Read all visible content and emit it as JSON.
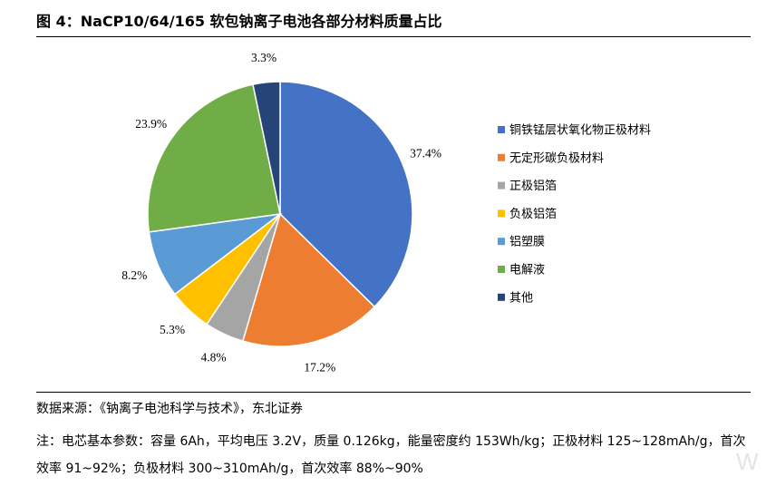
{
  "title": "图 4：NaCP10/64/165 软包钠离子电池各部分材料质量占比",
  "chart_data": {
    "type": "pie",
    "start_angle_deg": 0,
    "direction": "clockwise",
    "legend_position": "right",
    "slices": [
      {
        "label": "铜铁锰层状氧化物正极材料",
        "value": 37.4,
        "value_label": "37.4%",
        "color": "#4472C4"
      },
      {
        "label": "无定形碳负极材料",
        "value": 17.2,
        "value_label": "17.2%",
        "color": "#ED7D31"
      },
      {
        "label": "正极铝箔",
        "value": 4.8,
        "value_label": "4.8%",
        "color": "#A5A5A5"
      },
      {
        "label": "负极铝箔",
        "value": 5.3,
        "value_label": "5.3%",
        "color": "#FFC000"
      },
      {
        "label": "铝塑膜",
        "value": 8.2,
        "value_label": "8.2%",
        "color": "#5B9BD5"
      },
      {
        "label": "电解液",
        "value": 23.9,
        "value_label": "23.9%",
        "color": "#70AD47"
      },
      {
        "label": "其他",
        "value": 3.3,
        "value_label": "3.3%",
        "color": "#264478"
      }
    ]
  },
  "source": "数据来源：《钠离子电池科学与技术》，东北证券",
  "note": "注：电芯基本参数：容量 6Ah，平均电压 3.2V，质量 0.126kg，能量密度约 153Wh/kg；正极材料 125~128mAh/g，首次效率 91~92%；负极材料 300~310mAh/g，首次效率 88%~90%",
  "watermark": "W"
}
